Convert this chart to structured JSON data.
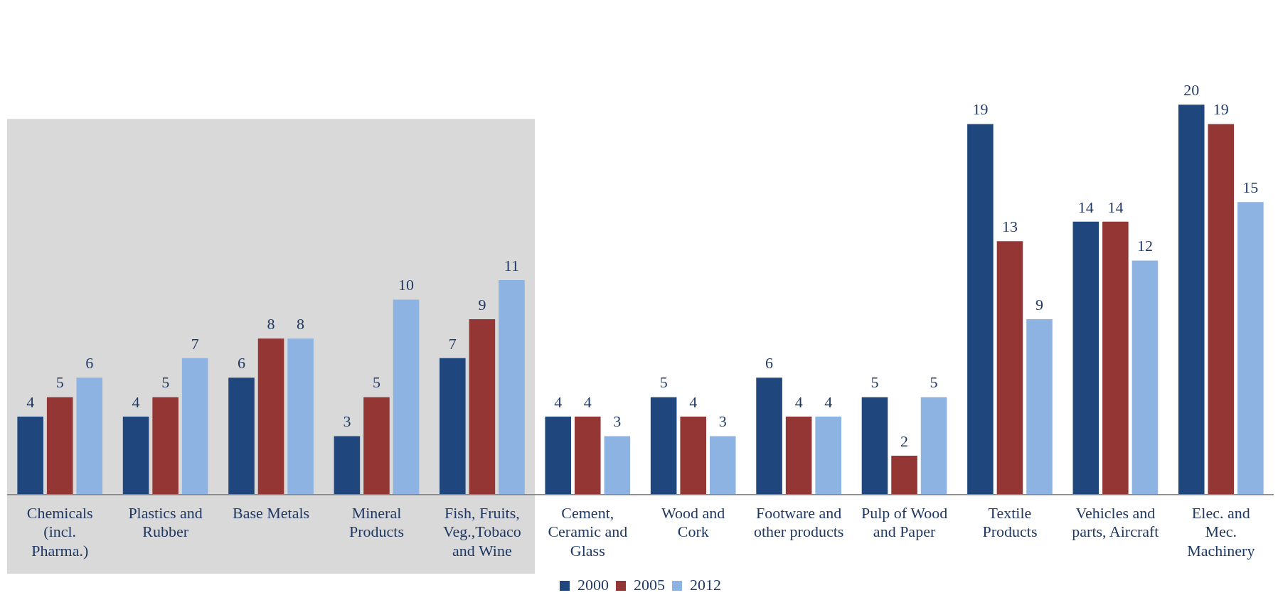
{
  "chart_data": {
    "type": "bar",
    "categories": [
      "Chemicals (incl. Pharma.)",
      "Plastics and Rubber",
      "Base Metals",
      "Mineral Products",
      "Fish, Fruits, Veg.,Tobaco and Wine",
      "Cement, Ceramic and Glass",
      "Wood and Cork",
      "Footware and other products",
      "Pulp of Wood and Paper",
      "Textile Products",
      "Vehicles and parts, Aircraft",
      "Elec. and Mec. Machinery"
    ],
    "series": [
      {
        "name": "2000",
        "color": "#1f477d",
        "values": [
          4,
          4,
          6,
          3,
          7,
          4,
          5,
          6,
          5,
          19,
          14,
          20
        ]
      },
      {
        "name": "2005",
        "color": "#943634",
        "values": [
          5,
          5,
          8,
          5,
          9,
          4,
          4,
          4,
          2,
          13,
          14,
          19
        ]
      },
      {
        "name": "2012",
        "color": "#8db3e2",
        "values": [
          6,
          7,
          8,
          10,
          11,
          3,
          3,
          4,
          5,
          9,
          12,
          15
        ]
      }
    ],
    "bands": [
      {
        "axis": "x",
        "from": "Chemicals (incl. Pharma.)",
        "to": "Fish, Fruits, Veg.,Tobaco and Wine",
        "color": "#d9d9d9"
      }
    ],
    "data_labels": true,
    "legend": "bottom",
    "grid": false
  }
}
